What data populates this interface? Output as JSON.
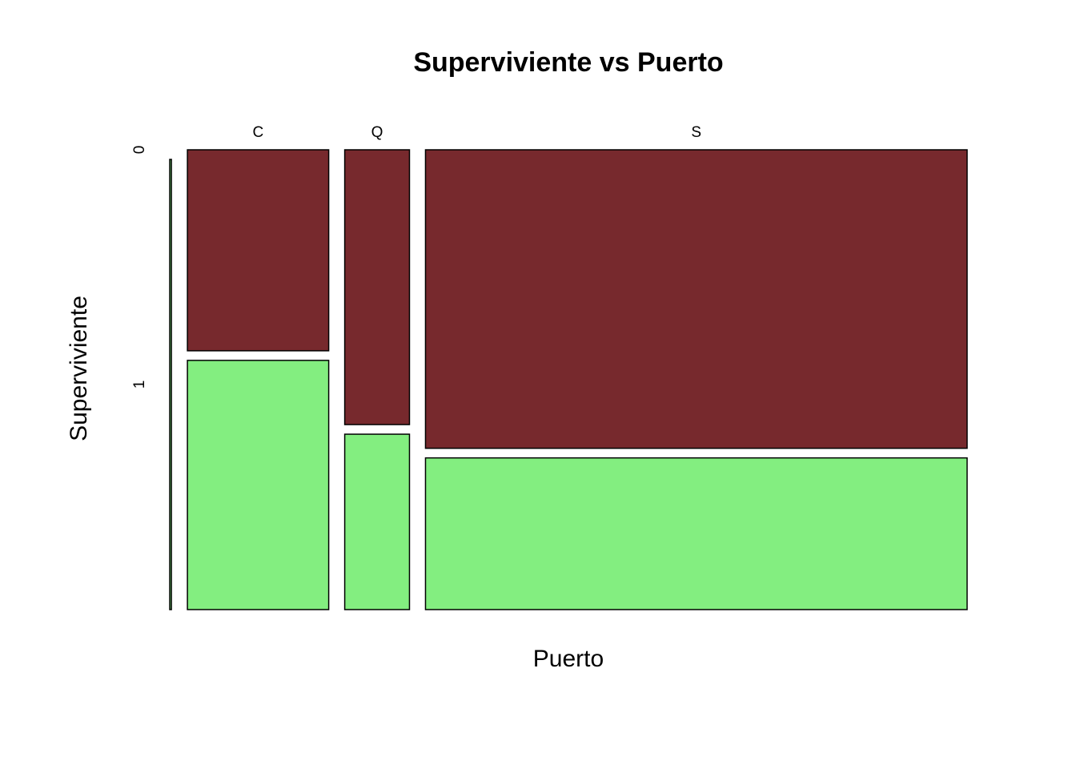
{
  "chart_data": {
    "type": "mosaic",
    "title": "Superviviente vs Puerto",
    "xlabel": "Puerto",
    "ylabel": "Superviviente",
    "categories": [
      null,
      "C",
      "Q",
      "S"
    ],
    "series": [
      {
        "name": "0",
        "color": "#77292d",
        "values": [
          0,
          75,
          47,
          427
        ]
      },
      {
        "name": "1",
        "color": "#83ee80",
        "values": [
          2,
          93,
          30,
          217
        ]
      }
    ]
  }
}
